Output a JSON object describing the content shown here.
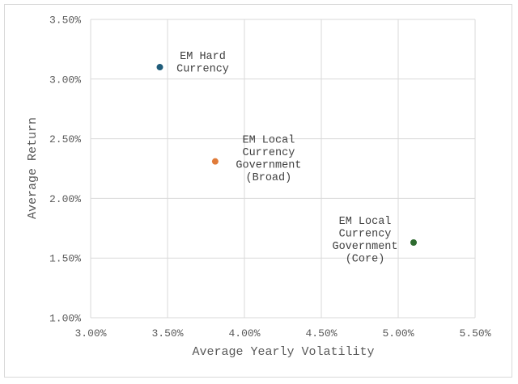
{
  "chart_data": {
    "type": "scatter",
    "title": "",
    "xlabel": "Average Yearly Volatility",
    "ylabel": "Average Return",
    "xlim": [
      3.0,
      5.5
    ],
    "ylim": [
      1.0,
      3.5
    ],
    "x_ticks": [
      "3.00%",
      "3.50%",
      "4.00%",
      "4.50%",
      "5.00%",
      "5.50%"
    ],
    "y_ticks": [
      "3.50%",
      "3.00%",
      "2.50%",
      "2.00%",
      "1.50%",
      "1.00%"
    ],
    "grid": true,
    "legend": "none",
    "points": [
      {
        "label": "EM Hard Currency",
        "label_lines": [
          "EM Hard",
          "Currency"
        ],
        "x": 3.45,
        "y": 3.1,
        "color": "#1f5c7a"
      },
      {
        "label": "EM Local Currency Government (Broad)",
        "label_lines": [
          "EM Local",
          "Currency",
          "Government",
          "(Broad)"
        ],
        "x": 3.81,
        "y": 2.31,
        "color": "#e07b39"
      },
      {
        "label": "EM Local Currency Government (Core)",
        "label_lines": [
          "EM Local",
          "Currency",
          "Government",
          "(Core)"
        ],
        "x": 5.1,
        "y": 1.63,
        "color": "#2e6b2f"
      }
    ]
  }
}
